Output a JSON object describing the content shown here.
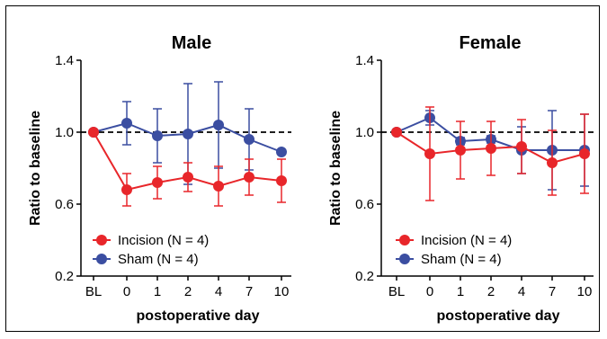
{
  "chart_data": [
    {
      "type": "line",
      "title": "Male",
      "xlabel": "postoperative day",
      "ylabel": "Ratio to baseline",
      "categories": [
        "BL",
        "0",
        "1",
        "2",
        "4",
        "7",
        "10"
      ],
      "ylim": [
        0.2,
        1.4
      ],
      "yticks": [
        "0.2",
        "0.6",
        "1.0",
        "1.4"
      ],
      "reference_line": 1.0,
      "legend_position": "bottom-left",
      "series": [
        {
          "name": "Incision (N = 4)",
          "color": "#e8262a",
          "values": [
            1.0,
            0.68,
            0.72,
            0.75,
            0.7,
            0.75,
            0.73
          ],
          "err": [
            0,
            0.09,
            0.09,
            0.08,
            0.11,
            0.1,
            0.12
          ]
        },
        {
          "name": "Sham (N = 4)",
          "color": "#3b4ea1",
          "values": [
            1.0,
            1.05,
            0.98,
            0.99,
            1.04,
            0.96,
            0.89
          ],
          "err": [
            0,
            0.12,
            0.15,
            0.28,
            0.24,
            0.17,
            0.0
          ]
        }
      ]
    },
    {
      "type": "line",
      "title": "Female",
      "xlabel": "postoperative day",
      "ylabel": "Ratio to baseline",
      "categories": [
        "BL",
        "0",
        "1",
        "2",
        "4",
        "7",
        "10"
      ],
      "ylim": [
        0.2,
        1.4
      ],
      "yticks": [
        "0.2",
        "0.6",
        "1.0",
        "1.4"
      ],
      "reference_line": 1.0,
      "legend_position": "bottom-left",
      "series": [
        {
          "name": "Incision (N = 4)",
          "color": "#e8262a",
          "values": [
            1.0,
            0.88,
            0.9,
            0.91,
            0.92,
            0.83,
            0.88
          ],
          "err": [
            0,
            0.26,
            0.16,
            0.15,
            0.15,
            0.18,
            0.22
          ]
        },
        {
          "name": "Sham (N = 4)",
          "color": "#3b4ea1",
          "values": [
            1.0,
            1.08,
            0.95,
            0.96,
            0.9,
            0.9,
            0.9
          ],
          "err": [
            0,
            0.04,
            0.02,
            0.02,
            0.13,
            0.22,
            0.2
          ]
        }
      ]
    }
  ]
}
